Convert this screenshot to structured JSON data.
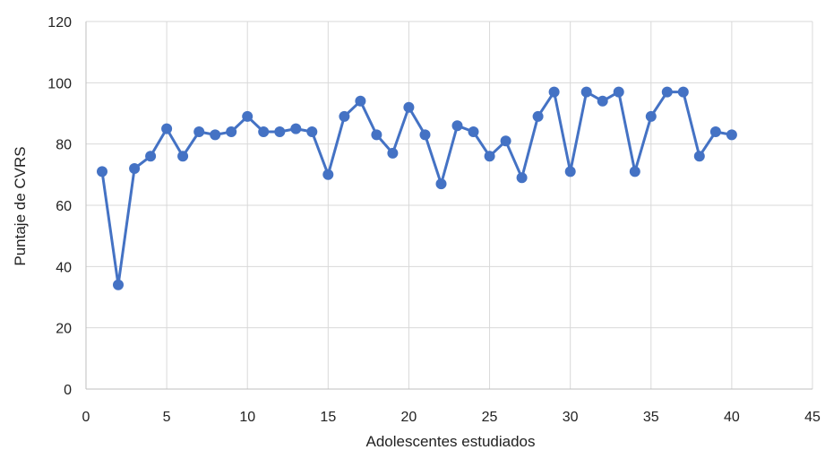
{
  "chart_data": {
    "type": "line",
    "title": "",
    "xlabel": "Adolescentes estudiados",
    "ylabel": "Puntaje de CVRS",
    "xlim": [
      0,
      45
    ],
    "ylim": [
      0,
      120
    ],
    "x_ticks": [
      0,
      5,
      10,
      15,
      20,
      25,
      30,
      35,
      40,
      45
    ],
    "y_ticks": [
      0,
      20,
      40,
      60,
      80,
      100,
      120
    ],
    "grid": true,
    "legend": "none",
    "series": [
      {
        "color": "#4472c4",
        "x": [
          1,
          2,
          3,
          4,
          5,
          6,
          7,
          8,
          9,
          10,
          11,
          12,
          13,
          14,
          15,
          16,
          17,
          18,
          19,
          20,
          21,
          22,
          23,
          24,
          25,
          26,
          27,
          28,
          29,
          30,
          31,
          32,
          33,
          34,
          35,
          36,
          37,
          38,
          39,
          40
        ],
        "y": [
          71,
          34,
          72,
          76,
          85,
          76,
          84,
          83,
          84,
          89,
          84,
          84,
          85,
          84,
          70,
          89,
          94,
          83,
          77,
          92,
          83,
          67,
          86,
          84,
          76,
          81,
          69,
          89,
          97,
          71,
          97,
          94,
          97,
          71,
          89,
          97,
          97,
          76,
          84,
          83
        ]
      }
    ]
  }
}
